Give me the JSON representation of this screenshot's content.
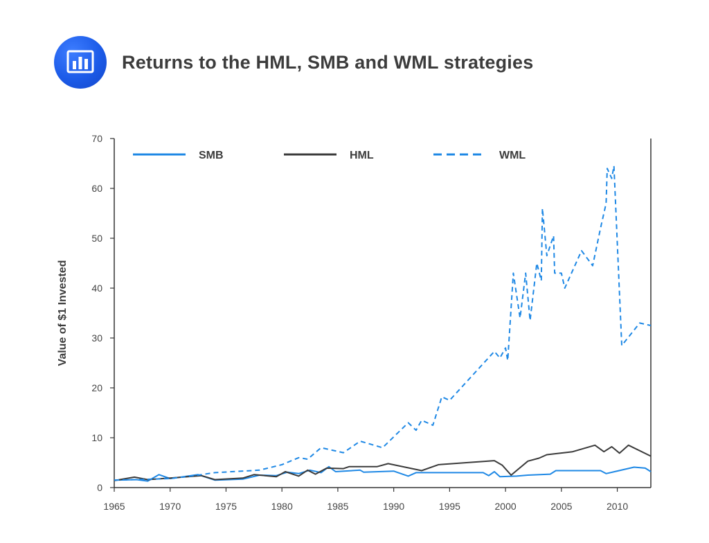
{
  "header": {
    "title": "Returns to the HML, SMB and WML strategies",
    "icon": "bar-chart-icon",
    "icon_color": "#1f5fec"
  },
  "chart_data": {
    "type": "line",
    "title": "Returns to the HML, SMB and WML strategies",
    "xlabel": "",
    "ylabel": "Value of $1 Invested",
    "xlim": [
      1965,
      2013
    ],
    "ylim": [
      0,
      70
    ],
    "xticks": [
      1965,
      1970,
      1975,
      1980,
      1985,
      1990,
      1995,
      2000,
      2005,
      2010
    ],
    "yticks": [
      0,
      10,
      20,
      30,
      40,
      50,
      60,
      70
    ],
    "grid": false,
    "legend_position": "top",
    "series": [
      {
        "name": "SMB",
        "color": "#1e88e5",
        "style": "solid",
        "x": [
          1965,
          1967,
          1968,
          1969,
          1970,
          1972.5,
          1974,
          1976.5,
          1978,
          1979.5,
          1980.5,
          1981.5,
          1982.5,
          1983.5,
          1984.2,
          1984.8,
          1987,
          1987.3,
          1990,
          1991.3,
          1992,
          1994,
          1998,
          1998.5,
          1999,
          1999.5,
          2001,
          2002,
          2004,
          2004.5,
          2005,
          2008.5,
          2009,
          2011.5,
          2012.5,
          2013
        ],
        "y": [
          1.5,
          1.6,
          1.3,
          2.6,
          1.8,
          2.6,
          1.5,
          1.7,
          2.5,
          2.4,
          3.1,
          2.8,
          3.5,
          3.0,
          4.2,
          3.2,
          3.5,
          3.1,
          3.3,
          2.3,
          3.0,
          3.0,
          3.0,
          2.4,
          3.2,
          2.2,
          2.3,
          2.5,
          2.7,
          3.4,
          3.4,
          3.4,
          2.8,
          4.1,
          3.9,
          3.2
        ]
      },
      {
        "name": "HML",
        "color": "#3a3a3a",
        "style": "solid",
        "x": [
          1965,
          1966.8,
          1968,
          1970,
          1972.8,
          1974,
          1976.5,
          1977.5,
          1979.5,
          1980.3,
          1981.5,
          1982.3,
          1983,
          1984,
          1985.5,
          1986,
          1988.5,
          1989.5,
          1992.5,
          1994,
          1999,
          1999.7,
          2000.5,
          2002,
          2003,
          2003.7,
          2006,
          2008,
          2008.8,
          2009.5,
          2010.2,
          2011,
          2013
        ],
        "y": [
          1.4,
          2.1,
          1.6,
          1.9,
          2.4,
          1.6,
          1.9,
          2.6,
          2.2,
          3.2,
          2.3,
          3.5,
          2.7,
          3.9,
          3.8,
          4.2,
          4.2,
          4.8,
          3.4,
          4.6,
          5.4,
          4.5,
          2.5,
          5.3,
          5.9,
          6.6,
          7.2,
          8.5,
          7.2,
          8.2,
          6.9,
          8.5,
          6.3
        ]
      },
      {
        "name": "WML",
        "color": "#1e88e5",
        "style": "dashed",
        "x": [
          1965,
          1967,
          1970,
          1972.5,
          1974,
          1978,
          1980,
          1981.5,
          1982.3,
          1983.5,
          1985.5,
          1987,
          1989,
          1991.3,
          1992,
          1992.5,
          1993.5,
          1994.3,
          1995,
          1999,
          1999.5,
          2000,
          2000.2,
          2000.7,
          2001.3,
          2001.8,
          2002.2,
          2002.8,
          2003.2,
          2003.3,
          2003.7,
          2004.3,
          2004.4,
          2005,
          2005.3,
          2006.8,
          2007.8,
          2008.5,
          2009,
          2009.1,
          2009.5,
          2009.7,
          2010.4,
          2012,
          2013
        ],
        "y": [
          1.5,
          1.6,
          1.8,
          2.5,
          3.0,
          3.5,
          4.6,
          6.0,
          5.7,
          8.0,
          7.0,
          9.3,
          8.0,
          13.0,
          11.5,
          13.5,
          12.5,
          18.2,
          17.5,
          27.3,
          26.0,
          28.0,
          25.5,
          43.0,
          34.0,
          43.0,
          33.5,
          45.0,
          41.5,
          56.0,
          46.5,
          50.5,
          43.0,
          43.0,
          40.0,
          47.5,
          44.5,
          52.0,
          57.0,
          64.0,
          62.0,
          64.5,
          28.5,
          33.0,
          32.5
        ]
      }
    ]
  }
}
